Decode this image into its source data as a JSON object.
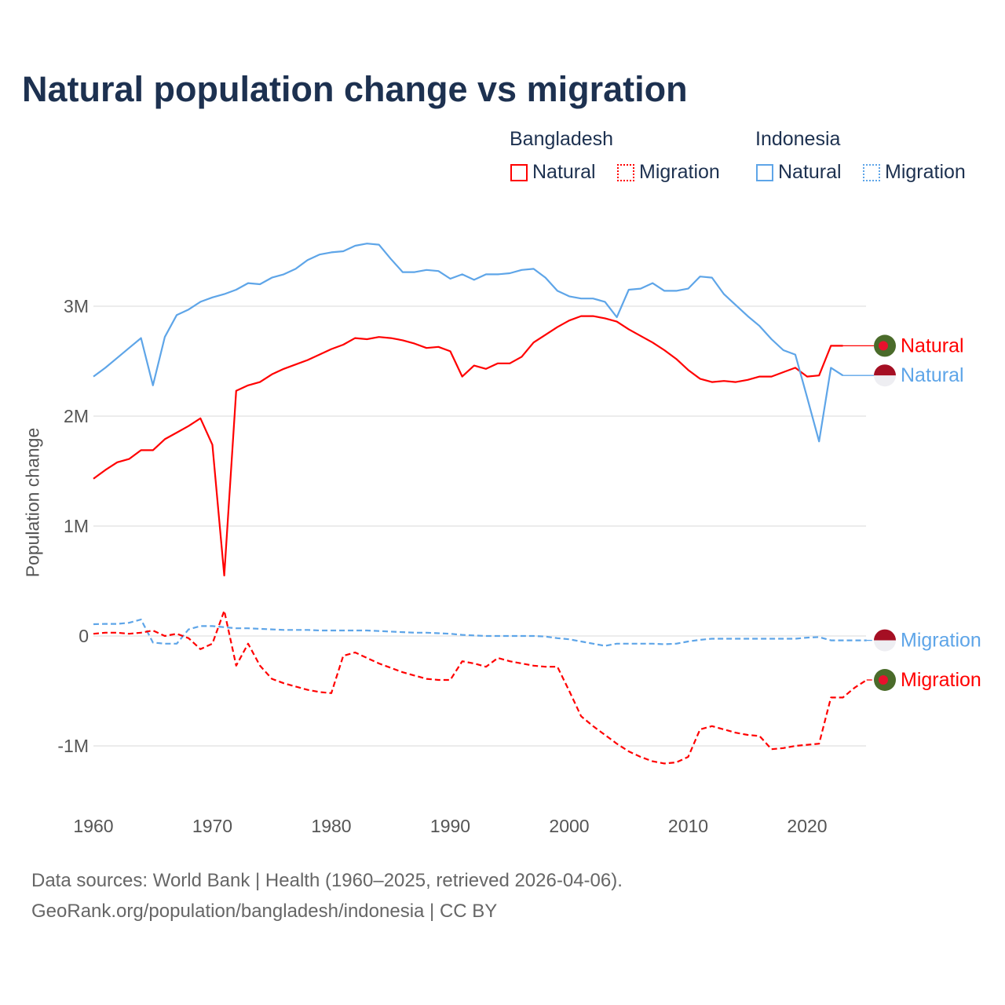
{
  "title": "Natural population change vs migration",
  "legend": {
    "groups": [
      {
        "name": "Bangladesh",
        "color": "#ff0000",
        "items": [
          "Natural",
          "Migration"
        ]
      },
      {
        "name": "Indonesia",
        "color": "#5ea5e8",
        "items": [
          "Natural",
          "Migration"
        ]
      }
    ]
  },
  "footer": {
    "line1": "Data sources: World Bank | Health (1960–2025, retrieved 2026-04-06).",
    "line2": "GeoRank.org/population/bangladesh/indonesia | CC BY"
  },
  "chart_data": {
    "type": "line",
    "title": "Natural population change vs migration",
    "xlabel": "",
    "ylabel": "Population change",
    "xlim": [
      1960,
      2025
    ],
    "ylim": [
      -1.5,
      3.7
    ],
    "y_unit": "millions",
    "x_ticks": [
      1960,
      1970,
      1980,
      1990,
      2000,
      2010,
      2020
    ],
    "y_ticks": [
      {
        "v": -1,
        "label": "-1M"
      },
      {
        "v": 0,
        "label": "0"
      },
      {
        "v": 1,
        "label": "1M"
      },
      {
        "v": 2,
        "label": "2M"
      },
      {
        "v": 3,
        "label": "3M"
      }
    ],
    "grid": true,
    "start_year": 1960,
    "series": [
      {
        "name": "Bangladesh Natural",
        "label": "Natural",
        "country": "Bangladesh",
        "color": "#ff0000",
        "dash": false,
        "extend_to": 2025,
        "values": [
          1.43,
          1.51,
          1.58,
          1.61,
          1.69,
          1.69,
          1.79,
          1.85,
          1.91,
          1.98,
          1.74,
          0.55,
          2.23,
          2.28,
          2.31,
          2.38,
          2.43,
          2.47,
          2.51,
          2.56,
          2.61,
          2.65,
          2.71,
          2.7,
          2.72,
          2.71,
          2.69,
          2.66,
          2.62,
          2.63,
          2.59,
          2.36,
          2.46,
          2.43,
          2.48,
          2.48,
          2.54,
          2.67,
          2.74,
          2.81,
          2.87,
          2.91,
          2.91,
          2.89,
          2.86,
          2.79,
          2.73,
          2.67,
          2.6,
          2.52,
          2.42,
          2.34,
          2.31,
          2.32,
          2.31,
          2.33,
          2.36,
          2.36,
          2.4,
          2.44,
          2.36,
          2.37,
          2.64,
          2.64
        ]
      },
      {
        "name": "Indonesia Natural",
        "label": "Natural",
        "country": "Indonesia",
        "color": "#5ea5e8",
        "dash": false,
        "extend_to": 2025,
        "values": [
          2.36,
          2.44,
          2.53,
          2.62,
          2.71,
          2.28,
          2.72,
          2.92,
          2.97,
          3.04,
          3.08,
          3.11,
          3.15,
          3.21,
          3.2,
          3.26,
          3.29,
          3.34,
          3.42,
          3.47,
          3.49,
          3.5,
          3.55,
          3.57,
          3.56,
          3.43,
          3.31,
          3.31,
          3.33,
          3.32,
          3.25,
          3.29,
          3.24,
          3.29,
          3.29,
          3.3,
          3.33,
          3.34,
          3.26,
          3.14,
          3.09,
          3.07,
          3.07,
          3.04,
          2.9,
          3.15,
          3.16,
          3.21,
          3.14,
          3.14,
          3.16,
          3.27,
          3.26,
          3.11,
          3.01,
          2.91,
          2.82,
          2.7,
          2.6,
          2.56,
          2.17,
          1.77,
          2.44,
          2.37
        ]
      },
      {
        "name": "Indonesia Migration",
        "label": "Migration",
        "country": "Indonesia",
        "color": "#5ea5e8",
        "dash": true,
        "extend_to": 2025,
        "values": [
          0.107,
          0.11,
          0.11,
          0.12,
          0.15,
          -0.06,
          -0.07,
          -0.07,
          0.06,
          0.09,
          0.09,
          0.08,
          0.07,
          0.07,
          0.065,
          0.06,
          0.055,
          0.055,
          0.055,
          0.05,
          0.05,
          0.05,
          0.05,
          0.05,
          0.045,
          0.04,
          0.035,
          0.03,
          0.03,
          0.025,
          0.02,
          0.01,
          0.005,
          0.0,
          0.0,
          0.0,
          0.0,
          0.0,
          -0.005,
          -0.02,
          -0.03,
          -0.05,
          -0.07,
          -0.09,
          -0.07,
          -0.07,
          -0.07,
          -0.07,
          -0.075,
          -0.07,
          -0.05,
          -0.035,
          -0.025,
          -0.025,
          -0.025,
          -0.025,
          -0.025,
          -0.025,
          -0.025,
          -0.025,
          -0.015,
          -0.01,
          -0.04,
          -0.04,
          -0.04,
          -0.04
        ]
      },
      {
        "name": "Bangladesh Migration",
        "label": "Migration",
        "country": "Bangladesh",
        "color": "#ff0000",
        "dash": true,
        "extend_to": 2025,
        "values": [
          0.02,
          0.03,
          0.03,
          0.02,
          0.03,
          0.05,
          0.0,
          0.02,
          -0.02,
          -0.12,
          -0.07,
          0.23,
          -0.27,
          -0.07,
          -0.27,
          -0.39,
          -0.43,
          -0.46,
          -0.49,
          -0.51,
          -0.52,
          -0.18,
          -0.15,
          -0.2,
          -0.25,
          -0.29,
          -0.33,
          -0.36,
          -0.39,
          -0.4,
          -0.4,
          -0.23,
          -0.25,
          -0.28,
          -0.2,
          -0.23,
          -0.25,
          -0.27,
          -0.28,
          -0.28,
          -0.5,
          -0.73,
          -0.82,
          -0.9,
          -0.98,
          -1.05,
          -1.1,
          -1.14,
          -1.16,
          -1.15,
          -1.1,
          -0.85,
          -0.82,
          -0.85,
          -0.88,
          -0.9,
          -0.91,
          -1.03,
          -1.02,
          -1.0,
          -0.99,
          -0.98,
          -0.56,
          -0.56,
          -0.47,
          -0.4
        ]
      }
    ]
  }
}
